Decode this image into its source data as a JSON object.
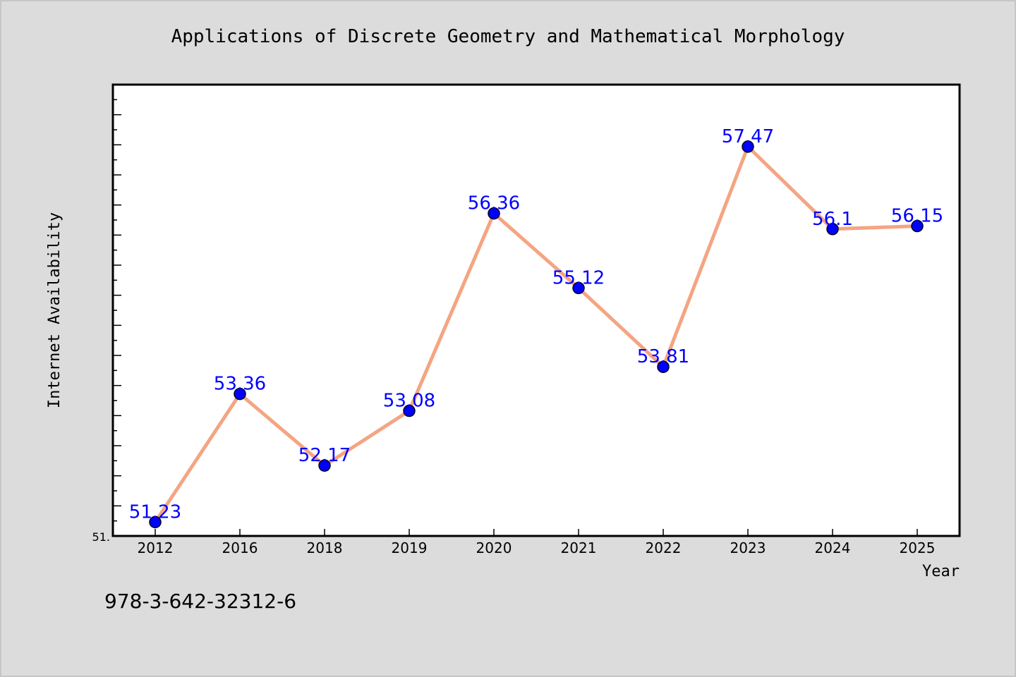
{
  "footer_text": "978-3-642-32312-6",
  "chart_data": {
    "type": "line",
    "title": "Applications of Discrete Geometry and Mathematical Morphology",
    "xlabel": "Year",
    "ylabel": "Internet Availability",
    "categories": [
      "2012",
      "2016",
      "2018",
      "2019",
      "2020",
      "2021",
      "2022",
      "2023",
      "2024",
      "2025"
    ],
    "series": [
      {
        "values": [
          51.23,
          53.36,
          52.17,
          53.08,
          56.36,
          55.12,
          53.81,
          57.47,
          56.1,
          56.15
        ],
        "labels": [
          "51.23",
          "53.36",
          "52.17",
          "53.08",
          "56.36",
          "55.12",
          "53.81",
          "57.47",
          "56.1",
          "56.15"
        ]
      }
    ],
    "ylim": [
      51.0,
      58.5
    ],
    "y_tick_label": "51.",
    "grid": false,
    "colors": {
      "line": "#f4a582",
      "marker": "#0000ff",
      "label": "#0000ff",
      "plot_bg": "#ffffff",
      "page_bg": "#dcdcdc"
    }
  }
}
